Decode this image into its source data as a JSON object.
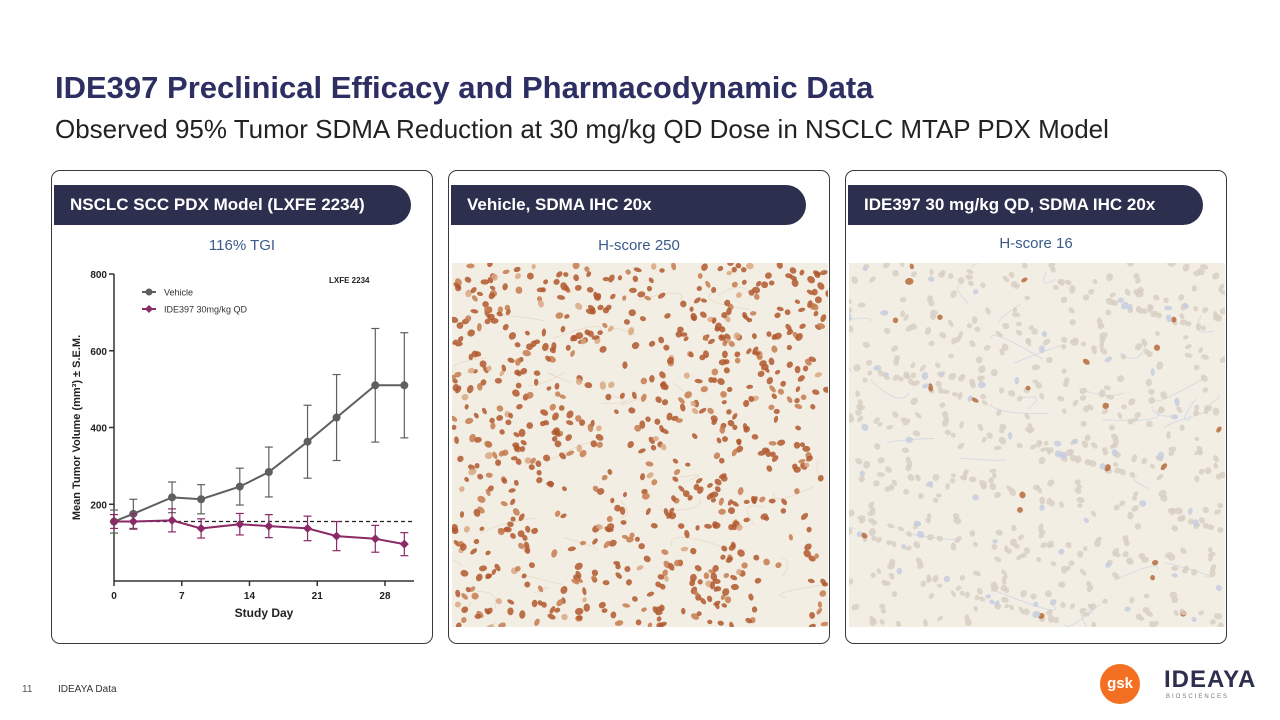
{
  "title": "IDE397 Preclinical Efficacy and Pharmacodynamic Data",
  "subtitle": "Observed 95% Tumor SDMA Reduction at 30 mg/kg QD Dose in NSCLC MTAP PDX Model",
  "panels": [
    {
      "header": "NSCLC SCC PDX Model (LXFE 2234)",
      "sub": "116% TGI"
    },
    {
      "header": "Vehicle, SDMA IHC 20x",
      "sub": "H-score 250"
    },
    {
      "header": "IDE397 30 mg/kg QD,  SDMA IHC 20x",
      "sub": "H-score 16"
    }
  ],
  "chart_data": {
    "type": "line",
    "title": "LXFE 2234",
    "xlabel": "Study Day",
    "ylabel": "Mean Tumor Volume (mm³) ± S.E.M.",
    "xlim": [
      0,
      31
    ],
    "ylim": [
      0,
      800
    ],
    "xticks": [
      0,
      7,
      14,
      21,
      28
    ],
    "yticks": [
      200,
      400,
      600,
      800
    ],
    "reference_line": 155,
    "series": [
      {
        "name": "Vehicle",
        "color": "#5f5f5f",
        "marker": "circle",
        "x": [
          0,
          2,
          6,
          9,
          13,
          16,
          20,
          23,
          27,
          30
        ],
        "y": [
          155,
          175,
          218,
          213,
          246,
          284,
          363,
          426,
          510,
          510
        ],
        "err": [
          30,
          38,
          40,
          38,
          48,
          65,
          95,
          112,
          148,
          137
        ]
      },
      {
        "name": "IDE397 30mg/kg QD",
        "color": "#8b2a67",
        "marker": "diamond",
        "x": [
          0,
          2,
          6,
          9,
          13,
          16,
          20,
          23,
          27,
          30
        ],
        "y": [
          155,
          155,
          158,
          137,
          148,
          143,
          137,
          117,
          110,
          96
        ],
        "err": [
          18,
          20,
          30,
          25,
          28,
          30,
          32,
          38,
          35,
          30
        ]
      }
    ]
  },
  "ihc_colors": {
    "vehicle_nuclei": "#b0582e",
    "treated_nuclei": "#d8cfc4",
    "background": "#f3eee4"
  },
  "footer": {
    "page": "11",
    "source": "IDEAYA Data"
  },
  "logos": {
    "gsk": "gsk",
    "ideaya": "IDEAYA",
    "ideaya_sub": "BIOSCIENCES"
  }
}
